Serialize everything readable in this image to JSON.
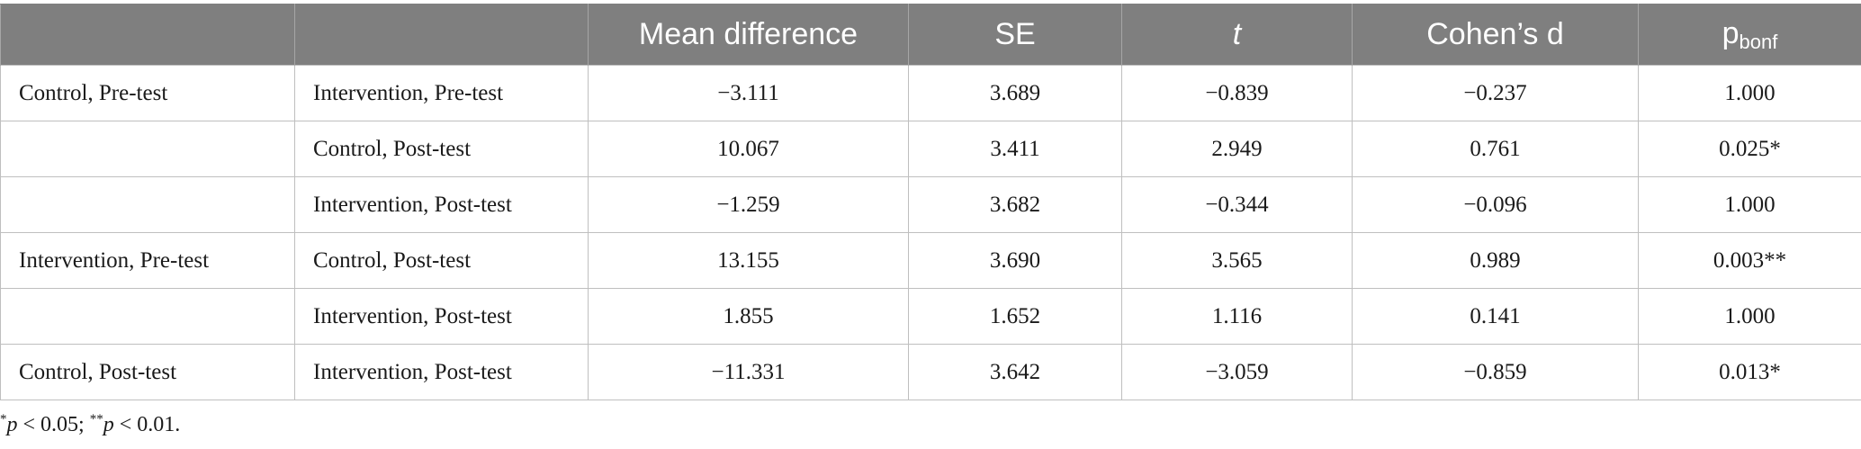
{
  "table": {
    "headers": [
      "",
      "",
      "Mean difference",
      "SE",
      "t",
      "Cohen’s d"
    ],
    "p_header": {
      "base": "p",
      "sub": "bonf"
    },
    "rows": [
      [
        "Control, Pre-test",
        "Intervention, Pre-test",
        "−3.111",
        "3.689",
        "−0.839",
        "−0.237",
        "1.000"
      ],
      [
        "",
        "Control, Post-test",
        "10.067",
        "3.411",
        "2.949",
        "0.761",
        "0.025*"
      ],
      [
        "",
        "Intervention, Post-test",
        "−1.259",
        "3.682",
        "−0.344",
        "−0.096",
        "1.000"
      ],
      [
        "Intervention, Pre-test",
        "Control, Post-test",
        "13.155",
        "3.690",
        "3.565",
        "0.989",
        "0.003**"
      ],
      [
        "",
        "Intervention, Post-test",
        "1.855",
        "1.652",
        "1.116",
        "0.141",
        "1.000"
      ],
      [
        "Control, Post-test",
        "Intervention, Post-test",
        "−11.331",
        "3.642",
        "−3.059",
        "−0.859",
        "0.013*"
      ]
    ]
  },
  "footnote": {
    "star1": "*",
    "p1": "p",
    "cond1": " < 0.05; ",
    "star2": "**",
    "p2": "p",
    "cond2": " < 0.01."
  }
}
